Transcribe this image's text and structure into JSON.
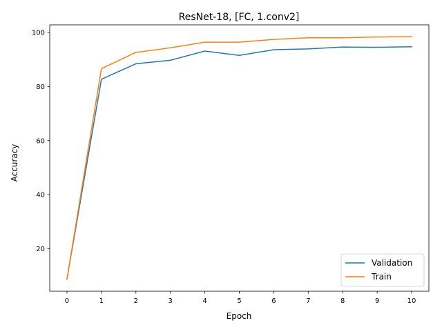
{
  "chart_data": {
    "type": "line",
    "title": "ResNet-18, [FC, 1.conv2]",
    "xlabel": "Epoch",
    "ylabel": "Accuracy",
    "x": [
      0,
      1,
      2,
      3,
      4,
      5,
      6,
      7,
      8,
      9,
      10
    ],
    "xticks": [
      "0",
      "1",
      "2",
      "3",
      "4",
      "5",
      "6",
      "7",
      "8",
      "9",
      "10"
    ],
    "yticks": [
      "20",
      "40",
      "60",
      "80",
      "100"
    ],
    "xlim": [
      -0.5,
      10.5
    ],
    "ylim": [
      4.3,
      102.8
    ],
    "grid": false,
    "legend_position": "lower-right",
    "series": [
      {
        "name": "Validation",
        "color": "#1f77b4",
        "values": [
          8.8,
          82.7,
          88.4,
          89.7,
          93.1,
          91.5,
          93.6,
          93.9,
          94.6,
          94.5,
          94.7
        ]
      },
      {
        "name": "Train",
        "color": "#ff7f0e",
        "values": [
          8.8,
          86.6,
          92.6,
          94.3,
          96.4,
          96.4,
          97.4,
          98.0,
          98.0,
          98.3,
          98.4
        ]
      }
    ]
  }
}
